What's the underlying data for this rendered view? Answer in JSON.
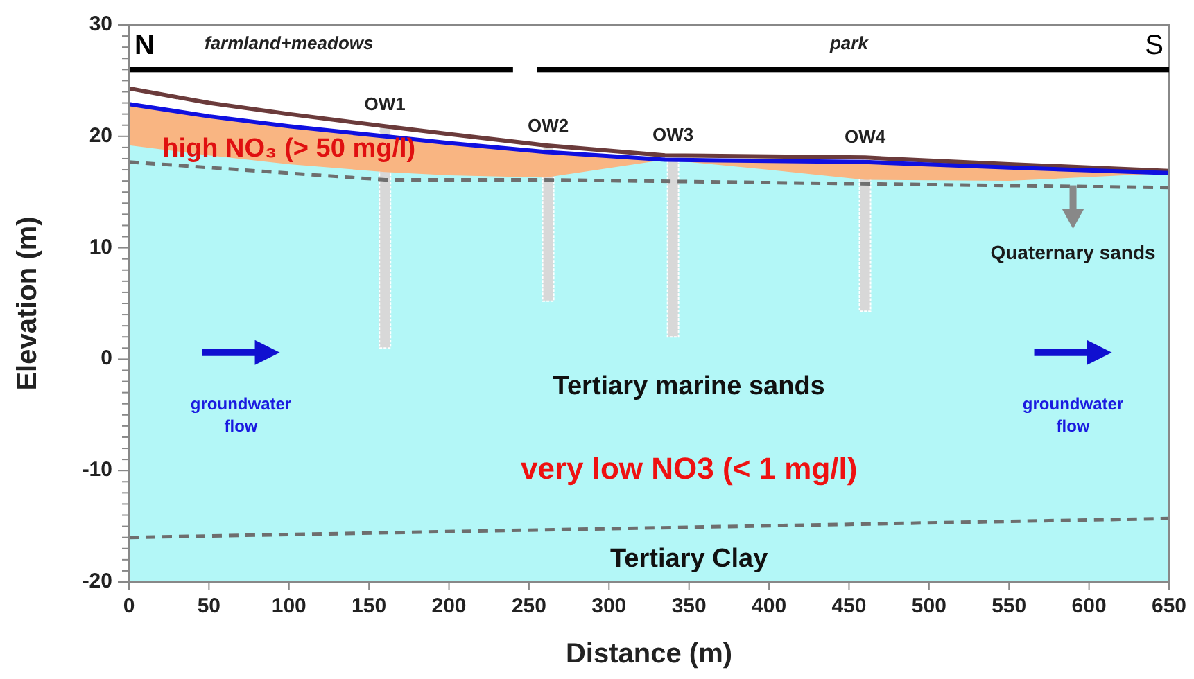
{
  "chart_data": {
    "type": "line",
    "xlabel": "Distance (m)",
    "ylabel": "Elevation (m)",
    "xlim": [
      0,
      650
    ],
    "ylim": [
      -20,
      30
    ],
    "xticks": [
      0,
      50,
      100,
      150,
      200,
      250,
      300,
      350,
      400,
      450,
      500,
      550,
      600,
      650
    ],
    "yticks": [
      -20,
      {
        "value": -19,
        "label": null
      },
      {
        "value": -18,
        "label": null
      },
      {
        "value": -17,
        "label": null
      },
      {
        "value": -16,
        "label": null
      },
      {
        "value": -15,
        "label": null
      },
      {
        "value": -14,
        "label": null
      },
      {
        "value": -13,
        "label": null
      },
      {
        "value": -12,
        "label": null
      },
      {
        "value": -11,
        "label": null
      },
      -10,
      {
        "value": -9,
        "label": null
      },
      {
        "value": -8,
        "label": null
      },
      {
        "value": -7,
        "label": null
      },
      {
        "value": -6,
        "label": null
      },
      {
        "value": -5,
        "label": null
      },
      {
        "value": -4,
        "label": null
      },
      {
        "value": -3,
        "label": null
      },
      {
        "value": -2,
        "label": null
      },
      {
        "value": -1,
        "label": null
      },
      0,
      {
        "value": 1,
        "label": null
      },
      {
        "value": 2,
        "label": null
      },
      {
        "value": 3,
        "label": null
      },
      {
        "value": 4,
        "label": null
      },
      {
        "value": 5,
        "label": null
      },
      {
        "value": 6,
        "label": null
      },
      {
        "value": 7,
        "label": null
      },
      {
        "value": 8,
        "label": null
      },
      {
        "value": 9,
        "label": null
      },
      10,
      {
        "value": 11,
        "label": null
      },
      {
        "value": 12,
        "label": null
      },
      {
        "value": 13,
        "label": null
      },
      {
        "value": 14,
        "label": null
      },
      {
        "value": 15,
        "label": null
      },
      {
        "value": 16,
        "label": null
      },
      {
        "value": 17,
        "label": null
      },
      {
        "value": 18,
        "label": null
      },
      {
        "value": 19,
        "label": null
      },
      20,
      {
        "value": 21,
        "label": null
      },
      {
        "value": 22,
        "label": null
      },
      {
        "value": 23,
        "label": null
      },
      {
        "value": 24,
        "label": null
      },
      {
        "value": 25,
        "label": null
      },
      {
        "value": 26,
        "label": null
      },
      {
        "value": 27,
        "label": null
      },
      {
        "value": 28,
        "label": null
      },
      {
        "value": 29,
        "label": null
      },
      30
    ],
    "series": [
      {
        "type": "bar",
        "color": "#d8d8d8",
        "x": [
          160,
          262,
          340,
          460
        ],
        "base": [
          20.9,
          19.1,
          18.0,
          17.9
        ],
        "values": [
          -19.9,
          -13.9,
          -16.0,
          -13.6
        ]
      },
      {
        "color": "#6e6e6e",
        "line_style": "dashed",
        "x": [
          0,
          160,
          260,
          650
        ],
        "values": [
          17.7,
          16.1,
          16.1,
          15.4
        ]
      },
      {
        "color": "#6e6e6e",
        "line_style": "dashed",
        "x": [
          0,
          650
        ],
        "values": [
          -16.0,
          -14.3
        ]
      },
      {
        "color": "#6b3b3b",
        "x": [
          0,
          50,
          100,
          160,
          200,
          260,
          335,
          400,
          460,
          550,
          650
        ],
        "values": [
          24.3,
          23.0,
          22.0,
          20.9,
          20.2,
          19.2,
          18.3,
          18.2,
          18.1,
          17.5,
          16.9
        ]
      },
      {
        "color": "#1010e0",
        "x": [
          0,
          50,
          100,
          160,
          200,
          260,
          335,
          400,
          460,
          550,
          650
        ],
        "values": [
          22.9,
          21.8,
          20.9,
          20.0,
          19.4,
          18.6,
          17.9,
          17.8,
          17.7,
          17.2,
          16.7
        ],
        "upper": [
          22.9,
          21.8,
          20.9,
          20.0,
          19.4,
          18.6,
          17.9,
          17.8,
          17.7,
          17.2,
          16.7
        ],
        "lower": [
          19.2,
          18.3,
          17.5,
          16.8,
          16.5,
          16.3,
          17.9,
          17.0,
          16.1,
          16.0,
          16.7
        ]
      }
    ],
    "annotations": [
      "N",
      "S",
      "farmland+meadows",
      "park",
      "OW1",
      "OW2",
      "OW3",
      "OW4",
      "high NO₃ (> 50 mg/l)",
      "Quaternary sands",
      "Tertiary marine sands",
      "very low NO3 (< 1 mg/l)",
      "Tertiary Clay",
      "groundwater flow",
      "groundwater flow"
    ]
  }
}
